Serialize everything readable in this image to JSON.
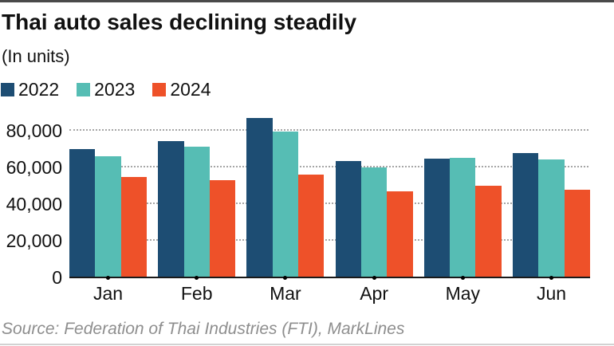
{
  "chart_data": {
    "type": "bar",
    "title": "Thai auto sales declining steadily",
    "subtitle": "(In units)",
    "categories": [
      "Jan",
      "Feb",
      "Mar",
      "Apr",
      "May",
      "Jun"
    ],
    "series": [
      {
        "name": "2022",
        "color": "#1d4d73",
        "values": [
          69500,
          74000,
          86500,
          63000,
          64500,
          67500
        ]
      },
      {
        "name": "2023",
        "color": "#56bdb4",
        "values": [
          65500,
          71000,
          79000,
          59500,
          65000,
          64000
        ]
      },
      {
        "name": "2024",
        "color": "#ee5129",
        "values": [
          54500,
          52500,
          55500,
          46500,
          49500,
          47500
        ]
      }
    ],
    "xlabel": "",
    "ylabel": "",
    "ylim": [
      0,
      88700
    ],
    "yticks": [
      0,
      20000,
      40000,
      60000,
      80000
    ],
    "ytick_labels": [
      "0",
      "20,000",
      "40,000",
      "60,000",
      "80,000"
    ],
    "grid": "horizontal-dotted",
    "legend_position": "top-left",
    "source": "Source: Federation of Thai Industries (FTI), MarkLines"
  },
  "decoration": {
    "top_rule_color": "#4a4a4a",
    "bottom_rule_color": "#d2d2d2",
    "gridline_color": "#a6a6a6",
    "axis_color": "#1a1a1a",
    "source_color": "#8e8e8e"
  }
}
